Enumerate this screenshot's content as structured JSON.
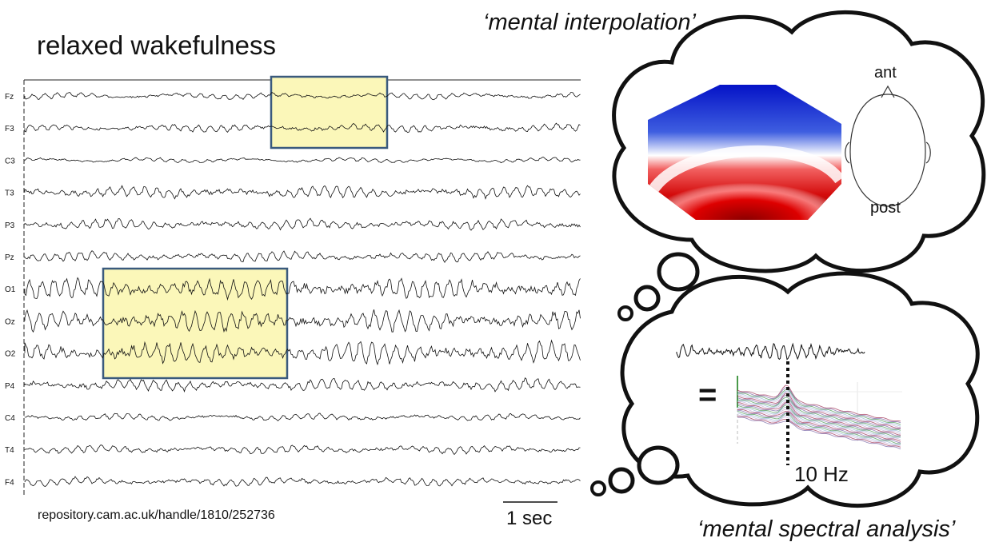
{
  "title": "relaxed wakefulness",
  "source": "repository.cam.ac.uk/handle/1810/252736",
  "scale_bar_label": "1 sec",
  "channels": [
    "Fz",
    "F3",
    "C3",
    "T3",
    "P3",
    "Pz",
    "O1",
    "Oz",
    "O2",
    "P4",
    "C4",
    "T4",
    "F4"
  ],
  "thought_top": {
    "caption": "‘mental interpolation’",
    "ant_label": "ant",
    "post_label": "post"
  },
  "thought_bottom": {
    "caption": "‘mental spectral analysis’",
    "equals": "=",
    "peak_label": "10 Hz"
  },
  "colors": {
    "highlight_fill": "#fbf7b9",
    "highlight_border": "#3a5a7d",
    "topo_blue": "#0b16c8",
    "topo_red": "#c80000",
    "spectrum_lines": [
      "#a0355a",
      "#7d6aa8",
      "#4f9a5a",
      "#9ab8d8",
      "#c6b0d8"
    ]
  }
}
